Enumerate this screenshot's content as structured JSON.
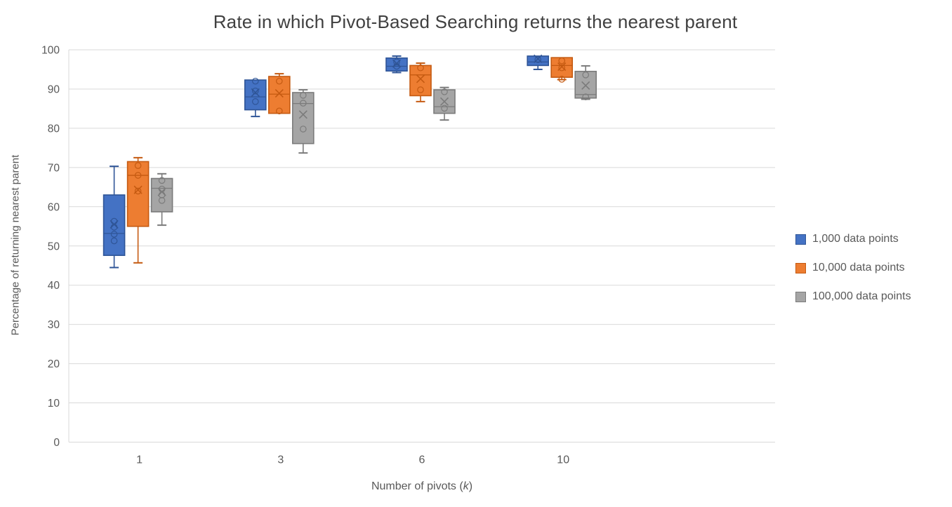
{
  "chart_data": {
    "type": "box",
    "title": "Rate in which Pivot-Based Searching returns the nearest parent",
    "ylabel": "Percentage of returning nearest parent",
    "xlabel_prefix": "Number of pivots (",
    "xlabel_italic": "k",
    "xlabel_suffix": ")",
    "categories": [
      "1",
      "3",
      "6",
      "10"
    ],
    "ylim": [
      0,
      100
    ],
    "ytick_step": 10,
    "grid": true,
    "legend_position": "right",
    "gridline_color": "#D9D9D9",
    "axis_text_color": "#595959",
    "title_color": "#404040",
    "series": [
      {
        "name": "1,000 data points",
        "fill": "#4472C4",
        "border": "#2F5597",
        "boxes": [
          {
            "category": "1",
            "low": 44.5,
            "q1": 47.6,
            "median": 53.2,
            "q3": 63.0,
            "high": 70.3,
            "mean": 55.5,
            "points": [
              56.3,
              54.8,
              53.0,
              51.3
            ]
          },
          {
            "category": "3",
            "low": 83.0,
            "q1": 84.7,
            "median": 88.0,
            "q3": 92.3,
            "high": 92.3,
            "mean": 89.1,
            "points": [
              92.0,
              89.5,
              86.8
            ]
          },
          {
            "category": "6",
            "low": 94.2,
            "q1": 94.6,
            "median": 95.8,
            "q3": 97.9,
            "high": 98.4,
            "mean": 96.5,
            "points": [
              96.9,
              95.8
            ]
          },
          {
            "category": "10",
            "low": 95.0,
            "q1": 96.0,
            "median": 96.9,
            "q3": 98.4,
            "high": 98.4,
            "mean": 97.7,
            "points": [
              97.5
            ]
          }
        ]
      },
      {
        "name": "10,000 data points",
        "fill": "#ED7D31",
        "border": "#C55A11",
        "boxes": [
          {
            "category": "1",
            "low": 45.7,
            "q1": 55.0,
            "median": 68.0,
            "q3": 71.5,
            "high": 72.5,
            "mean": 64.3,
            "points": [
              70.5,
              68.0,
              64.0
            ]
          },
          {
            "category": "3",
            "low": 83.8,
            "q1": 83.8,
            "median": 88.7,
            "q3": 93.2,
            "high": 93.9,
            "mean": 88.9,
            "points": [
              92.0,
              84.4
            ]
          },
          {
            "category": "6",
            "low": 86.8,
            "q1": 88.3,
            "median": 93.6,
            "q3": 96.0,
            "high": 96.6,
            "mean": 92.6,
            "points": [
              95.4,
              89.8
            ]
          },
          {
            "category": "10",
            "low": 92.4,
            "q1": 93.0,
            "median": 96.0,
            "q3": 98.0,
            "high": 98.0,
            "mean": 95.7,
            "points": [
              97.2,
              95.4,
              92.5
            ]
          }
        ]
      },
      {
        "name": "100,000 data points",
        "fill": "#A5A5A5",
        "border": "#7B7B7B",
        "boxes": [
          {
            "category": "1",
            "low": 55.3,
            "q1": 58.7,
            "median": 64.7,
            "q3": 67.2,
            "high": 68.4,
            "mean": 63.8,
            "points": [
              66.7,
              64.5,
              63.0,
              61.6
            ]
          },
          {
            "category": "3",
            "low": 73.7,
            "q1": 76.1,
            "median": 86.3,
            "q3": 89.1,
            "high": 89.8,
            "mean": 83.5,
            "points": [
              88.4,
              86.4,
              79.8
            ]
          },
          {
            "category": "6",
            "low": 82.1,
            "q1": 83.8,
            "median": 85.5,
            "q3": 89.8,
            "high": 90.4,
            "mean": 86.8,
            "points": [
              89.3,
              85.1
            ]
          },
          {
            "category": "10",
            "low": 87.4,
            "q1": 87.7,
            "median": 88.6,
            "q3": 94.5,
            "high": 95.9,
            "mean": 90.9,
            "points": [
              93.6,
              88.0
            ]
          }
        ]
      }
    ]
  }
}
